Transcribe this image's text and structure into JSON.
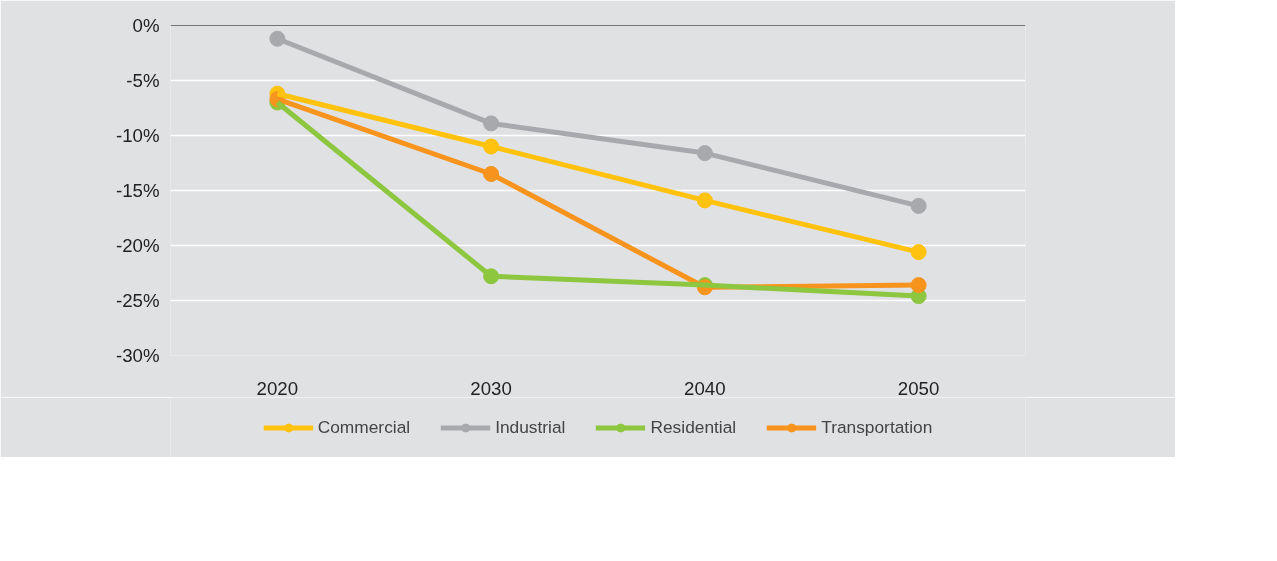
{
  "chart_data": {
    "type": "line",
    "categories": [
      "2020",
      "2030",
      "2040",
      "2050"
    ],
    "series": [
      {
        "name": "Commercial",
        "color": "#ffc20e",
        "values": [
          -6.2,
          -11.0,
          -15.9,
          -20.6
        ]
      },
      {
        "name": "Industrial",
        "color": "#a7a9ac",
        "values": [
          -1.2,
          -8.9,
          -11.6,
          -16.4
        ]
      },
      {
        "name": "Residential",
        "color": "#8dc63f",
        "values": [
          -7.0,
          -22.8,
          -23.6,
          -24.6
        ]
      },
      {
        "name": "Transportation",
        "color": "#f7941d",
        "values": [
          -6.7,
          -13.5,
          -23.8,
          -23.6
        ]
      }
    ],
    "ylim": [
      -30,
      0
    ],
    "yticks": [
      {
        "value": 0,
        "label": "0%"
      },
      {
        "value": -5,
        "label": "-5%"
      },
      {
        "value": -10,
        "label": "-10%"
      },
      {
        "value": -15,
        "label": "-15%"
      },
      {
        "value": -20,
        "label": "-20%"
      },
      {
        "value": -25,
        "label": "-25%"
      },
      {
        "value": -30,
        "label": "-30%"
      }
    ],
    "ref_lines": [
      {
        "axis": "y",
        "value": 0,
        "color": "#000000"
      }
    ],
    "grid": "y",
    "legend": "bottom",
    "marker": "circle",
    "line_style": "solid"
  }
}
